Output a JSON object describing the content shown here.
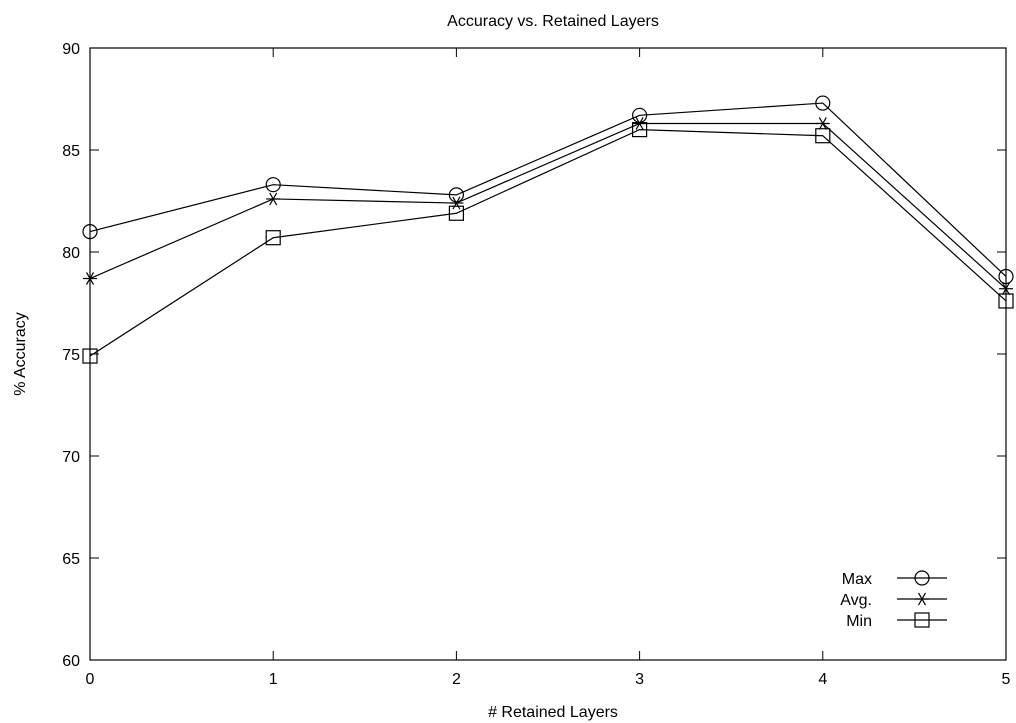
{
  "chart_data": {
    "type": "line",
    "title": "Accuracy vs. Retained Layers",
    "xlabel": "# Retained Layers",
    "ylabel": "% Accuracy",
    "x": [
      0,
      1,
      2,
      3,
      4,
      5
    ],
    "xlim": [
      0,
      5
    ],
    "ylim": [
      60,
      90
    ],
    "xticks": [
      0,
      1,
      2,
      3,
      4,
      5
    ],
    "yticks": [
      60,
      65,
      70,
      75,
      80,
      85,
      90
    ],
    "grid": false,
    "legend_position": "bottom-right",
    "series": [
      {
        "name": "Max",
        "marker": "circle",
        "values": [
          81.0,
          83.3,
          82.8,
          86.7,
          87.3,
          78.8
        ]
      },
      {
        "name": "Avg.",
        "marker": "star",
        "values": [
          78.7,
          82.6,
          82.4,
          86.3,
          86.3,
          78.2
        ]
      },
      {
        "name": "Min",
        "marker": "square",
        "values": [
          74.9,
          80.7,
          81.9,
          86.0,
          85.7,
          77.6
        ]
      }
    ],
    "color": "#000000"
  }
}
